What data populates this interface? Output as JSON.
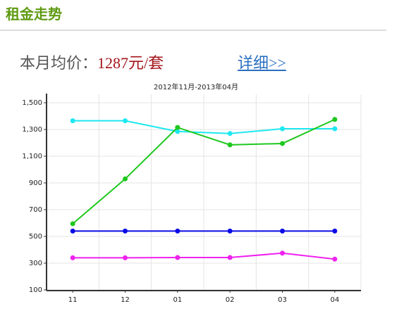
{
  "header": {
    "title": "租金走势"
  },
  "price": {
    "label": "本月均价：",
    "value": "1287元/套",
    "link": "详细>>"
  },
  "chart_data": {
    "type": "line",
    "title": "2012年11月-2013年04月",
    "categories": [
      "11",
      "12",
      "01",
      "02",
      "03",
      "04"
    ],
    "series": [
      {
        "color": "#1ee8f0",
        "values": [
          1365,
          1365,
          1285,
          1270,
          1305,
          1305
        ]
      },
      {
        "color": "#1ec81e",
        "values": [
          595,
          930,
          1315,
          1185,
          1195,
          1375
        ]
      },
      {
        "color": "#0a0ae6",
        "values": [
          540,
          540,
          540,
          540,
          540,
          540
        ]
      },
      {
        "color": "#ee22ee",
        "values": [
          340,
          340,
          342,
          342,
          375,
          330
        ]
      }
    ],
    "ylim": [
      100,
      1500
    ],
    "yticks": [
      100,
      300,
      500,
      700,
      900,
      {
        "value": 1100,
        "label": "1,100"
      },
      {
        "value": 1300,
        "label": "1,300"
      },
      {
        "value": 1500,
        "label": "1,500"
      }
    ],
    "grid": true
  }
}
